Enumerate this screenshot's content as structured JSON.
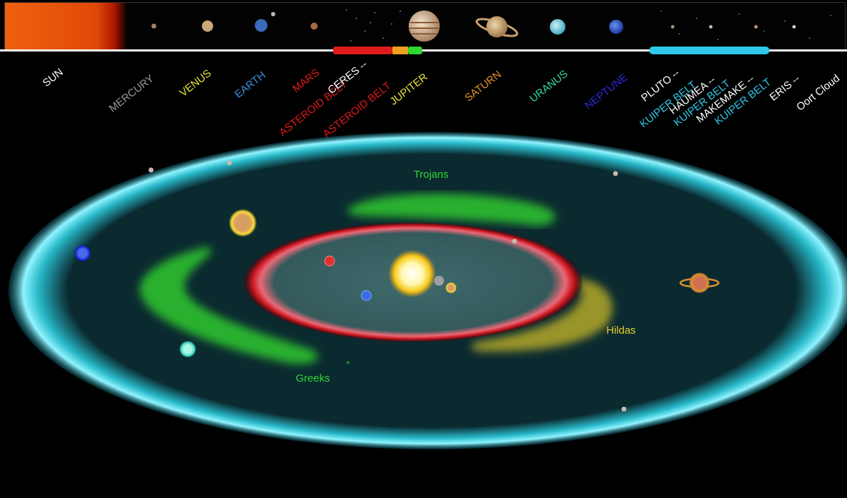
{
  "labels": {
    "sun": "SUN",
    "mercury": "MERCURY",
    "venus": "VENUS",
    "earth": "EARTH",
    "mars": "MARS",
    "asteroid_belt_1": "ASTEROID BELT",
    "ceres": "CERES --",
    "asteroid_belt_2": "ASTEROID BELT",
    "jupiter": "JUPITER",
    "saturn": "SATURN",
    "uranus": "URANUS",
    "neptune": "NEPTUNE",
    "pluto": "PLUTO --",
    "kuiper_belt_1": "KUIPER BELT",
    "haumea": "HAUMEA --",
    "kuiper_belt_2": "KUIPER BELT",
    "makemake": "MAKEMAKE --",
    "kuiper_belt_3": "KUIPER BELT",
    "eris": "ERIS --",
    "oort_cloud": "Oort Cloud"
  },
  "diagram": {
    "trojans": "Trojans",
    "greeks": "Greeks",
    "hildas": "Hildas"
  },
  "colors": {
    "sun": "#ffffff",
    "mercury": "#9a9a9a",
    "venus": "#e8e23a",
    "earth": "#3a8fe0",
    "mars": "#e01a1a",
    "asteroid_belt": "#e01a1a",
    "ceres": "#ffffff",
    "jupiter": "#e8e23a",
    "saturn": "#e8902a",
    "uranus": "#30d8a0",
    "neptune": "#2a2ae0",
    "kuiper_belt": "#30c8e8",
    "dwarf": "#ffffff",
    "oort": "#ffffff",
    "trojans": "#2ed82e",
    "greeks": "#2ed82e",
    "hildas": "#e8d22a"
  }
}
